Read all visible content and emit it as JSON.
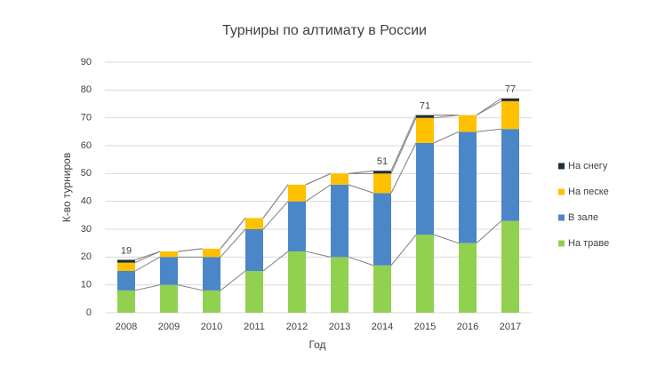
{
  "chart_data": {
    "type": "stacked_bar",
    "title": "Турниры по алтимату в России",
    "x_label": "Год",
    "y_label": "К-во турниров",
    "categories": [
      "2008",
      "2009",
      "2010",
      "2011",
      "2012",
      "2013",
      "2014",
      "2015",
      "2016",
      "2017"
    ],
    "series": [
      {
        "name": "На траве",
        "color": "#92d050",
        "values": [
          8,
          10,
          8,
          15,
          22,
          20,
          17,
          28,
          25,
          33
        ]
      },
      {
        "name": "В зале",
        "color": "#4a86c8",
        "values": [
          7,
          10,
          12,
          15,
          18,
          26,
          26,
          33,
          40,
          33
        ]
      },
      {
        "name": "На песке",
        "color": "#ffc000",
        "values": [
          3,
          2,
          3,
          4,
          6,
          4,
          7,
          9,
          6,
          10
        ]
      },
      {
        "name": "На снегу",
        "color": "#1f2d3d",
        "values": [
          1,
          0,
          0,
          0,
          0,
          0,
          1,
          1,
          0,
          1
        ]
      }
    ],
    "totals": [
      19,
      null,
      null,
      null,
      null,
      null,
      51,
      71,
      null,
      77
    ],
    "ylim": [
      0,
      90
    ],
    "yticks": [
      0,
      10,
      20,
      30,
      40,
      50,
      60,
      70,
      80,
      90
    ],
    "grid": true,
    "series_lines": true,
    "legend": "right"
  }
}
